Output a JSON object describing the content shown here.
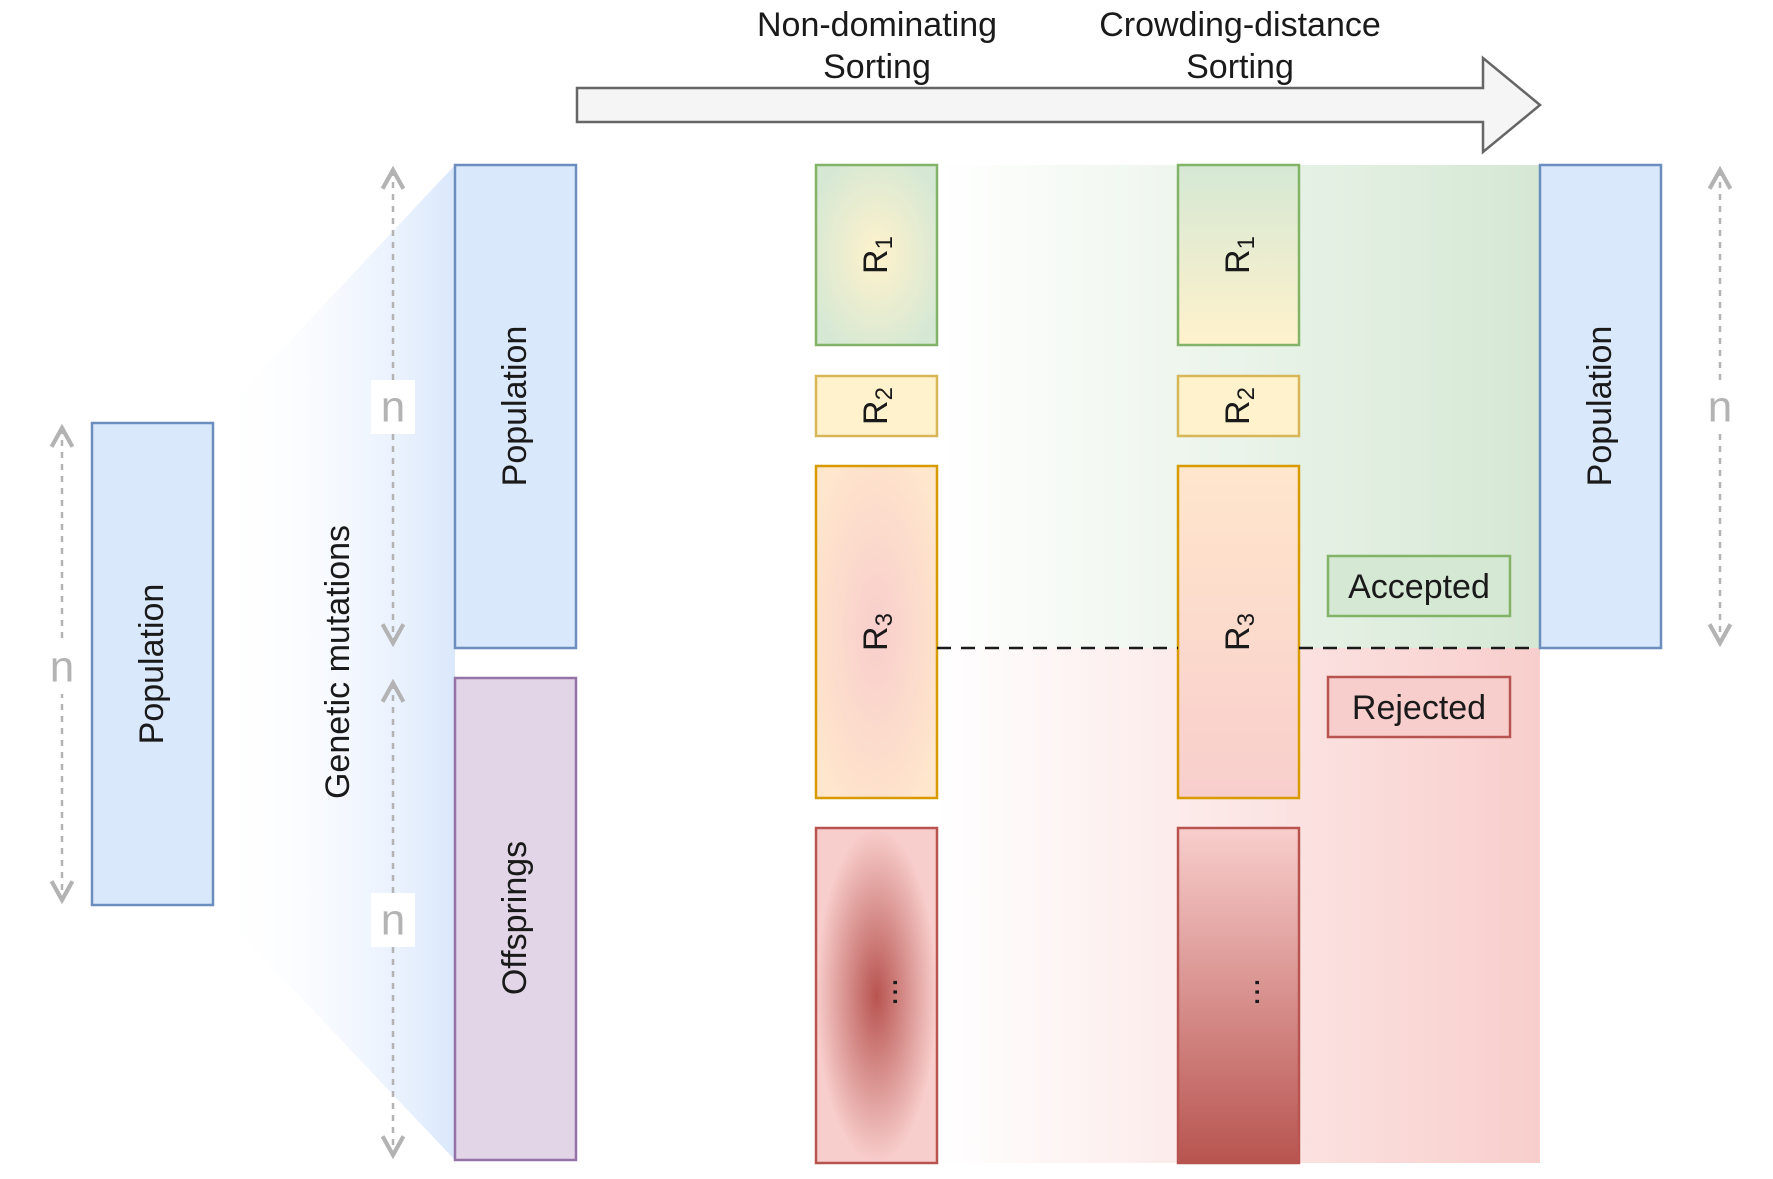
{
  "header": {
    "step1_line1": "Non-dominating",
    "step1_line2": "Sorting",
    "step2_line1": "Crowding-distance",
    "step2_line2": "Sorting"
  },
  "boxes": {
    "initial_population": "Population",
    "parent_population": "Population",
    "offsprings": "Offsprings",
    "final_population": "Population"
  },
  "side_label": "Genetic mutations",
  "size_marker": "n",
  "ranks": {
    "r_letter": "R",
    "r1_sub": "1",
    "r2_sub": "2",
    "r3_sub": "3",
    "rest": "..."
  },
  "legend": {
    "accepted": "Accepted",
    "rejected": "Rejected"
  },
  "colors": {
    "blue_fill": "#dae8fc",
    "blue_stroke": "#6c8ebf",
    "purple_fill": "#e1d5e7",
    "purple_stroke": "#9673a6",
    "green_fill": "#d5e8d4",
    "green_stroke": "#82b366",
    "yellow_fill": "#fff2cc",
    "yellow_stroke": "#d6b656",
    "orange_stroke": "#d79b00",
    "red_fill": "#f8cecc",
    "red_stroke": "#b85450",
    "arrow_fill": "#f5f5f5",
    "arrow_stroke": "#666666",
    "marker_gray": "#b3b3b3"
  }
}
